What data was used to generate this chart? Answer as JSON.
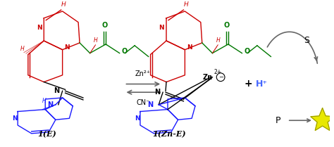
{
  "fig_width": 4.74,
  "fig_height": 2.09,
  "dpi": 100,
  "bg_color": "#ffffff",
  "red": "#cc0000",
  "blue": "#1a1aff",
  "green": "#007700",
  "black": "#000000",
  "gray": "#666666",
  "hplus_color": "#4466ff",
  "star_fill": "#e8e800",
  "star_edge": "#999900",
  "mol1_label": "1(E)",
  "mol2_label": "1(Zn-E)",
  "zn_reagent": "Zn²⁺",
  "cn_reagent": "CN⁻",
  "hplus_text": "H⁺",
  "s_text": "S",
  "p_text": "P"
}
